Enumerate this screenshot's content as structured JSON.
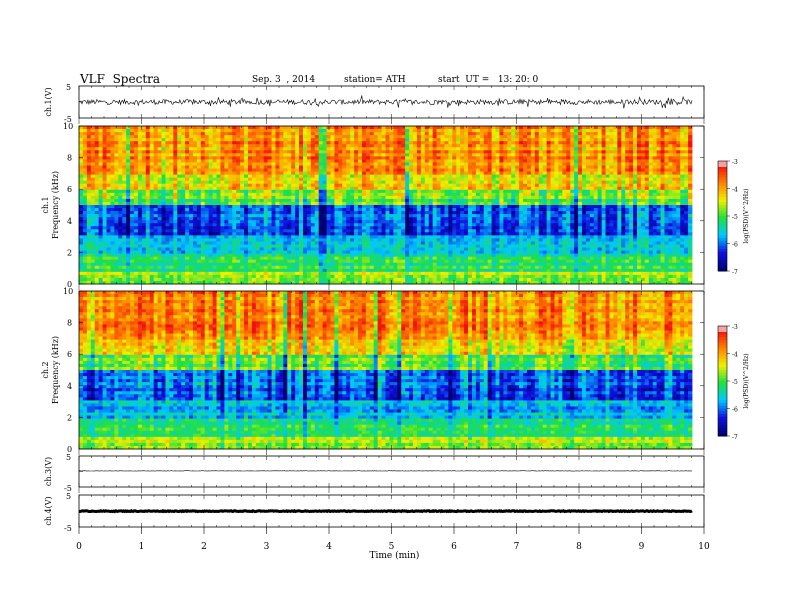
{
  "header": {
    "title": "VLF  Spectra",
    "date": "Sep. 3  , 2014",
    "station": "station= ATH",
    "start": "start  UT =   13: 20: 0"
  },
  "colors": {
    "low": "#000070",
    "blue": "#1010e0",
    "cyan": "#00c8ff",
    "green": "#20e040",
    "yellow": "#f0f000",
    "orange": "#ff8000",
    "red": "#f01010",
    "high": "#ffffff"
  },
  "chart_data": [
    {
      "type": "line",
      "name": "ch1-waveform",
      "ylabel": "ch.1(V)",
      "ylim": [
        -5,
        5
      ],
      "yticks": [
        "5",
        "-5"
      ],
      "x_range_min": [
        0,
        9.8
      ],
      "description_of_signal": "dense noisy waveform, amplitude approx +-1.5 V"
    },
    {
      "type": "heatmap",
      "name": "ch1-spectrogram",
      "ylabel_line1": "ch.1",
      "ylabel_line2": "Frequency  (kHz)",
      "ylim": [
        0,
        10
      ],
      "yticks": [
        "0",
        "2",
        "4",
        "6",
        "8",
        "10"
      ],
      "colorbar": {
        "label": "log(PSD)(V^2/Hz)",
        "range": [
          -7,
          -3
        ],
        "ticks": [
          "-3",
          "-4",
          "-5",
          "-6",
          "-7"
        ]
      }
    },
    {
      "type": "heatmap",
      "name": "ch2-spectrogram",
      "ylabel_line1": "ch.2",
      "ylabel_line2": "Frequency  (kHz)",
      "ylim": [
        0,
        10
      ],
      "yticks": [
        "0",
        "2",
        "4",
        "6",
        "8",
        "10"
      ],
      "colorbar": {
        "label": "log(PSD)(V^2/Hz)",
        "range": [
          -7,
          -3
        ],
        "ticks": [
          "-3",
          "-4",
          "-5",
          "-6",
          "-7"
        ]
      }
    },
    {
      "type": "line",
      "name": "ch3-waveform",
      "ylabel": "ch.3(V)",
      "ylim": [
        -5,
        5
      ],
      "yticks": [
        "5",
        "-5"
      ]
    },
    {
      "type": "line",
      "name": "ch4-waveform",
      "ylabel": "ch.4(V)",
      "ylim": [
        -5,
        5
      ],
      "yticks": [
        "5",
        "-5"
      ]
    }
  ],
  "xaxis": {
    "label": "Time  (min)",
    "ticks": [
      "0",
      "1",
      "2",
      "3",
      "4",
      "5",
      "6",
      "7",
      "8",
      "9",
      "10"
    ],
    "range": [
      0,
      10
    ],
    "data_end": 9.8
  }
}
